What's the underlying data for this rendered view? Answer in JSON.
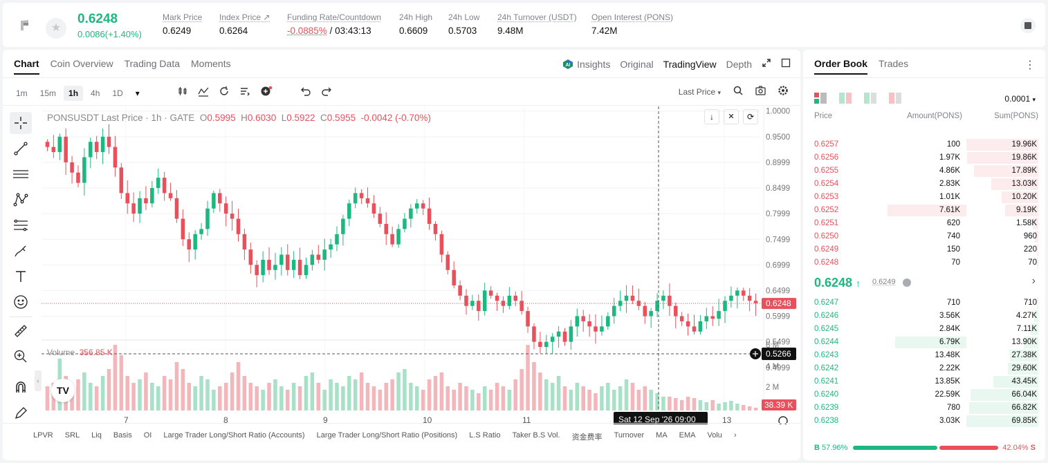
{
  "ticker": {
    "last_price": "0.6248",
    "change": "0.0086(+1.40%)",
    "stats": [
      {
        "label": "Mark Price",
        "value": "0.6249"
      },
      {
        "label": "Index Price ↗",
        "value": "0.6264"
      },
      {
        "label": "Funding Rate/Countdown",
        "value_rate": "-0.0885%",
        "value_countdown": "/ 03:43:13"
      },
      {
        "label": "24h High",
        "value": "0.6609"
      },
      {
        "label": "24h Low",
        "value": "0.5703"
      },
      {
        "label": "24h Turnover (USDT)",
        "value": "9.48M"
      },
      {
        "label": "Open Interest (PONS)",
        "value": "7.42M"
      }
    ]
  },
  "chart_tabs": [
    "Chart",
    "Coin Overview",
    "Trading Data",
    "Moments"
  ],
  "view_tabs": {
    "insights": "Insights",
    "original": "Original",
    "tradingview": "TradingView",
    "depth": "Depth"
  },
  "timeframes": [
    "1m",
    "15m",
    "1h",
    "4h",
    "1D"
  ],
  "price_source": "Last Price",
  "legend": {
    "symbol": "PONSUSDT Last Price · 1h · GATE",
    "o_label": "O",
    "o": "0.5995",
    "h_label": "H",
    "h": "0.6030",
    "l_label": "L",
    "l": "0.5922",
    "c_label": "C",
    "c": "0.5955",
    "chg": "-0.0042 (-0.70%)"
  },
  "volume_legend": {
    "label": "Volume",
    "value": "356.85 K"
  },
  "bottom_indicators": [
    "LPVR",
    "SRL",
    "Liq",
    "Basis",
    "OI",
    "Large Trader Long/Short Ratio (Accounts)",
    "Large Trader Long/Short Ratio (Positions)",
    "L.S Ratio",
    "Taker B.S Vol.",
    "资金费率",
    "Turnover",
    "MA",
    "EMA",
    "Volu"
  ],
  "chart_data": {
    "type": "candlestick",
    "symbol": "PONSUSDT",
    "interval": "1h",
    "price_axis": [
      1.0,
      0.95,
      0.8999,
      0.8499,
      0.7999,
      0.7499,
      0.6999,
      0.6499,
      0.5999,
      0.5499,
      0.4999
    ],
    "volume_axis": [
      "6 M",
      "4 M",
      "2 M"
    ],
    "x_ticks": [
      "7",
      "8",
      "9",
      "10",
      "11",
      "13"
    ],
    "last_price_label": "0.6248",
    "crosshair_price_label": "0.5266",
    "crosshair_time_label": "Sat 12 Sep '26  09:00",
    "volume_last_label": "38.39 K",
    "closes": [
      0.93,
      0.92,
      0.95,
      0.9,
      0.88,
      0.86,
      0.91,
      0.94,
      0.92,
      0.95,
      0.93,
      0.89,
      0.84,
      0.82,
      0.8,
      0.83,
      0.82,
      0.85,
      0.87,
      0.84,
      0.83,
      0.79,
      0.75,
      0.73,
      0.76,
      0.77,
      0.81,
      0.84,
      0.82,
      0.8,
      0.79,
      0.76,
      0.73,
      0.7,
      0.68,
      0.71,
      0.69,
      0.7,
      0.72,
      0.69,
      0.71,
      0.68,
      0.7,
      0.72,
      0.71,
      0.73,
      0.74,
      0.76,
      0.79,
      0.82,
      0.84,
      0.83,
      0.82,
      0.8,
      0.78,
      0.76,
      0.74,
      0.77,
      0.79,
      0.81,
      0.82,
      0.81,
      0.78,
      0.76,
      0.72,
      0.69,
      0.66,
      0.64,
      0.62,
      0.63,
      0.61,
      0.65,
      0.64,
      0.63,
      0.62,
      0.64,
      0.63,
      0.61,
      0.58,
      0.55,
      0.54,
      0.55,
      0.56,
      0.57,
      0.55,
      0.58,
      0.6,
      0.59,
      0.58,
      0.57,
      0.58,
      0.6,
      0.62,
      0.63,
      0.64,
      0.63,
      0.62,
      0.6,
      0.61,
      0.63,
      0.64,
      0.62,
      0.6,
      0.59,
      0.58,
      0.57,
      0.59,
      0.6,
      0.595,
      0.61,
      0.63,
      0.64,
      0.65,
      0.64,
      0.63,
      0.625
    ],
    "volume_rel": [
      0.35,
      0.4,
      0.75,
      0.5,
      0.3,
      0.45,
      0.55,
      0.4,
      0.35,
      0.5,
      0.6,
      0.95,
      0.8,
      0.5,
      0.4,
      0.45,
      0.55,
      0.4,
      0.35,
      0.5,
      0.45,
      0.7,
      0.6,
      0.4,
      0.35,
      0.5,
      0.45,
      0.3,
      0.35,
      0.4,
      0.55,
      0.7,
      0.5,
      0.4,
      0.35,
      0.3,
      0.4,
      0.45,
      0.35,
      0.3,
      0.4,
      0.35,
      0.5,
      0.55,
      0.4,
      0.3,
      0.45,
      0.4,
      0.35,
      0.5,
      0.45,
      0.55,
      0.4,
      0.35,
      0.3,
      0.4,
      0.45,
      0.55,
      0.6,
      0.4,
      0.35,
      0.3,
      0.45,
      0.5,
      0.55,
      0.35,
      0.3,
      0.4,
      0.35,
      0.3,
      0.25,
      0.35,
      0.3,
      0.4,
      0.35,
      0.3,
      0.45,
      0.6,
      0.95,
      0.7,
      0.55,
      0.45,
      0.4,
      0.5,
      0.35,
      0.3,
      0.4,
      0.35,
      0.3,
      0.25,
      0.35,
      0.4,
      0.3,
      0.35,
      0.45,
      0.4,
      0.3,
      0.35,
      0.3,
      0.25,
      0.2,
      0.2,
      0.18,
      0.15,
      0.2,
      0.18,
      0.15,
      0.12,
      0.15,
      0.1,
      0.12,
      0.14,
      0.1,
      0.08,
      0.06,
      0.04
    ]
  },
  "orderbook": {
    "tabs": [
      "Order Book",
      "Trades"
    ],
    "precision": "0.0001",
    "headers": {
      "price": "Price",
      "amount": "Amount(PONS)",
      "sum": "Sum(PONS)"
    },
    "asks": [
      {
        "p": "0.6257",
        "a": "100",
        "s": "19.96K",
        "depth": 1.0,
        "amt": 0.0
      },
      {
        "p": "0.6256",
        "a": "1.97K",
        "s": "19.86K",
        "depth": 0.995,
        "amt": 0.0
      },
      {
        "p": "0.6255",
        "a": "4.86K",
        "s": "17.89K",
        "depth": 0.896,
        "amt": 0.0
      },
      {
        "p": "0.6254",
        "a": "2.83K",
        "s": "13.03K",
        "depth": 0.653,
        "amt": 0.0
      },
      {
        "p": "0.6253",
        "a": "1.01K",
        "s": "10.20K",
        "depth": 0.511,
        "amt": 0.0
      },
      {
        "p": "0.6252",
        "a": "7.61K",
        "s": "9.19K",
        "depth": 0.46,
        "amt": 1.0
      },
      {
        "p": "0.6251",
        "a": "620",
        "s": "1.58K",
        "depth": 0.079,
        "amt": 0.0
      },
      {
        "p": "0.6250",
        "a": "740",
        "s": "960",
        "depth": 0.048,
        "amt": 0.0
      },
      {
        "p": "0.6249",
        "a": "150",
        "s": "220",
        "depth": 0.011,
        "amt": 0.0
      },
      {
        "p": "0.6248",
        "a": "70",
        "s": "70",
        "depth": 0.0035,
        "amt": 0.0
      }
    ],
    "mid_price": "0.6248",
    "mark_price": "0.6249",
    "bids": [
      {
        "p": "0.6247",
        "a": "710",
        "s": "710",
        "depth": 0.01,
        "amt": 0.0
      },
      {
        "p": "0.6246",
        "a": "3.56K",
        "s": "4.27K",
        "depth": 0.061,
        "amt": 0.0
      },
      {
        "p": "0.6245",
        "a": "2.84K",
        "s": "7.11K",
        "depth": 0.102,
        "amt": 0.0
      },
      {
        "p": "0.6244",
        "a": "6.79K",
        "s": "13.90K",
        "depth": 0.199,
        "amt": 0.9
      },
      {
        "p": "0.6243",
        "a": "13.48K",
        "s": "27.38K",
        "depth": 0.392,
        "amt": 0.0
      },
      {
        "p": "0.6242",
        "a": "2.22K",
        "s": "29.60K",
        "depth": 0.424,
        "amt": 0.0
      },
      {
        "p": "0.6241",
        "a": "13.85K",
        "s": "43.45K",
        "depth": 0.622,
        "amt": 0.0
      },
      {
        "p": "0.6240",
        "a": "22.59K",
        "s": "66.04K",
        "depth": 0.946,
        "amt": 0.0
      },
      {
        "p": "0.6239",
        "a": "780",
        "s": "66.82K",
        "depth": 0.957,
        "amt": 0.0
      },
      {
        "p": "0.6238",
        "a": "3.03K",
        "s": "69.85K",
        "depth": 1.0,
        "amt": 0.0
      }
    ],
    "buy_label": "B",
    "buy_pct": "57.96%",
    "sell_pct": "42.04%",
    "sell_label": "S",
    "buy_ratio": 0.5796
  },
  "colors": {
    "up": "#1db87f",
    "down": "#e8505b",
    "up_bg": "#e8f7ef",
    "down_bg": "#fdecee"
  }
}
